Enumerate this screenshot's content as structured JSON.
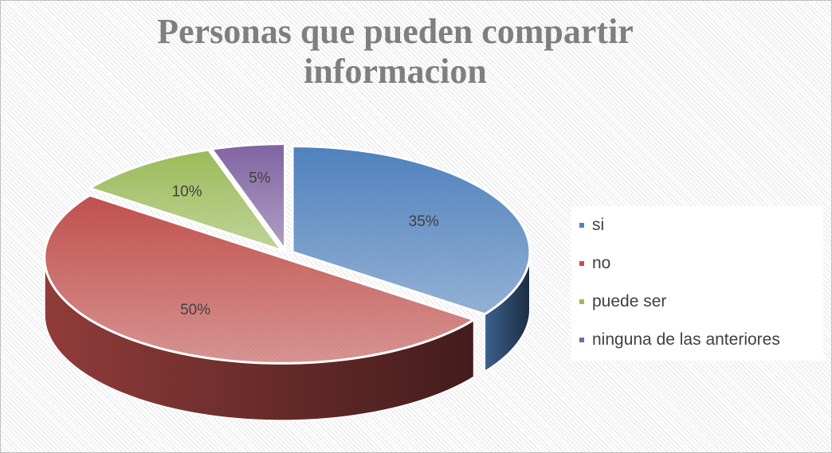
{
  "chart_data": {
    "type": "pie",
    "title": "Personas que pueden compartir informacion",
    "categories": [
      "si",
      "no",
      "puede ser",
      "ninguna de las anteriores"
    ],
    "values": [
      35,
      50,
      10,
      5
    ],
    "value_labels": [
      "35%",
      "50%",
      "10%",
      "5%"
    ],
    "colors": [
      "#4f81bd",
      "#c0504d",
      "#9bbb59",
      "#8064a2"
    ],
    "legend": "right"
  }
}
